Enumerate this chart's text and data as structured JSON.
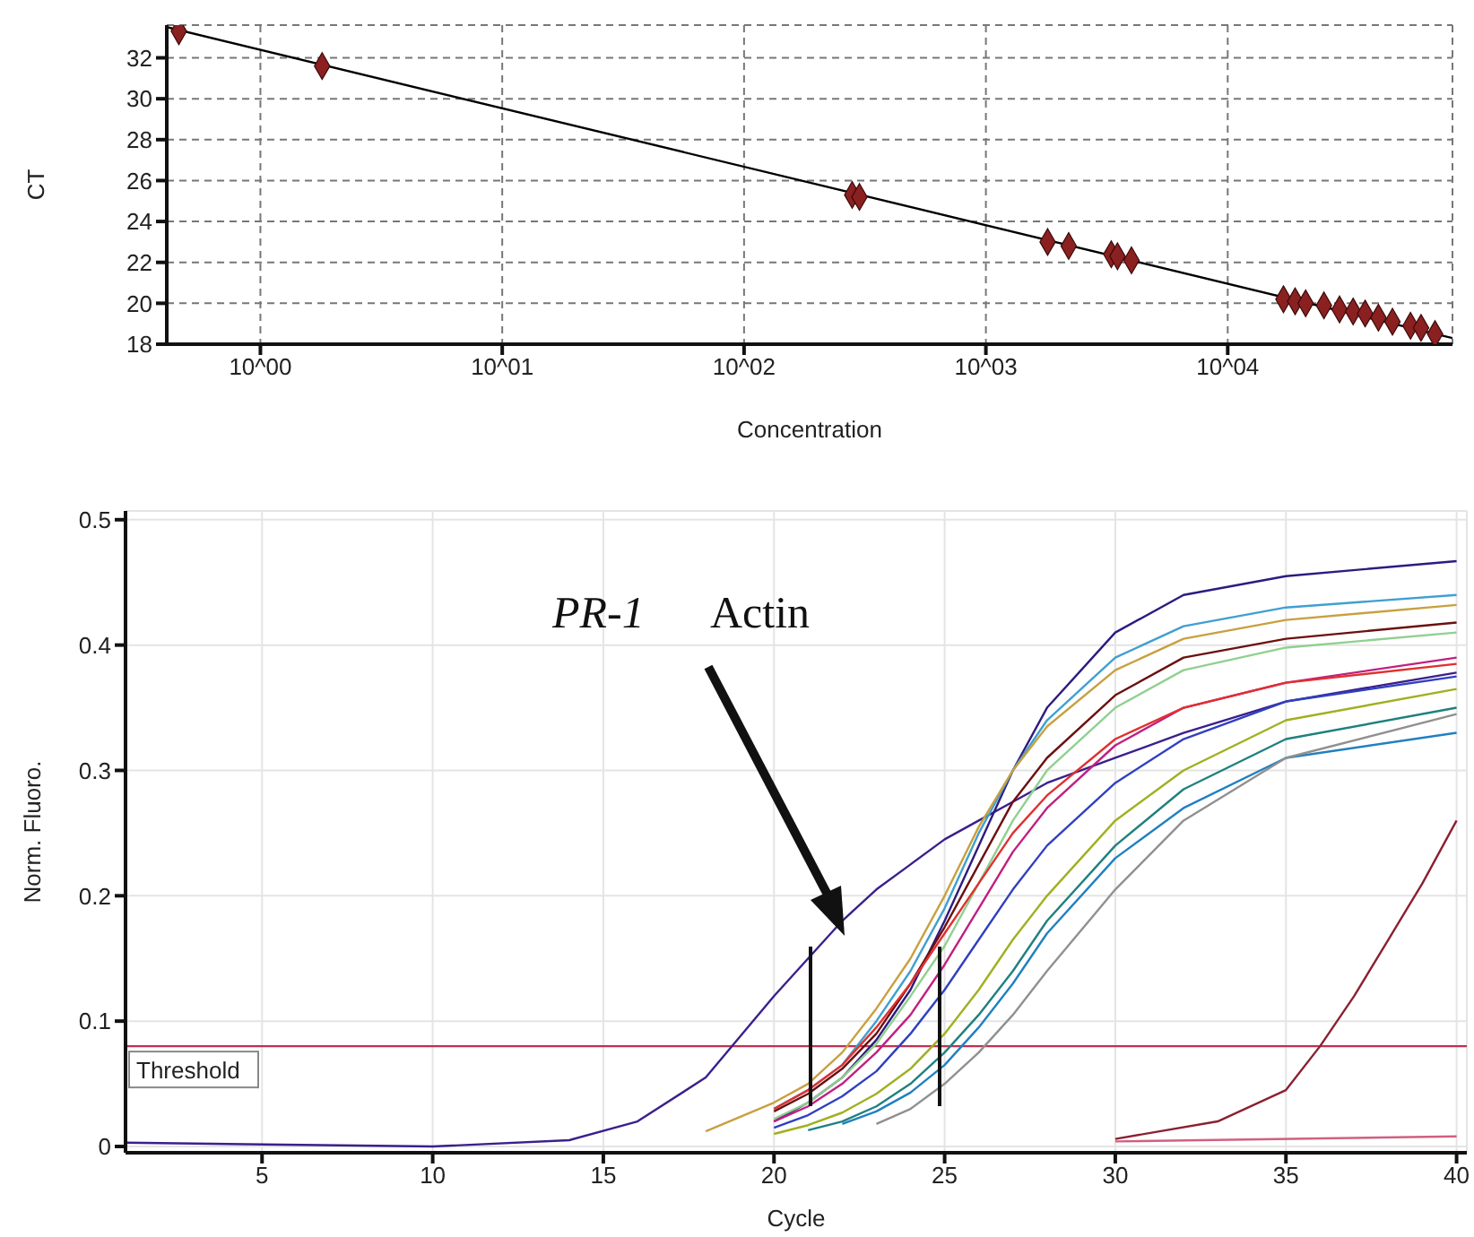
{
  "chart_data": [
    {
      "type": "scatter",
      "xlabel": "Concentration",
      "ylabel": "CT",
      "log": "x",
      "grid": true,
      "marker": "diamond",
      "xlim": [
        0.41,
        85000
      ],
      "xticks": [
        {
          "value": 1,
          "label": "10^00"
        },
        {
          "value": 10,
          "label": "10^01"
        },
        {
          "value": 100,
          "label": "10^02"
        },
        {
          "value": 1000,
          "label": "10^03"
        },
        {
          "value": 10000,
          "label": "10^04"
        }
      ],
      "ylim": [
        18,
        33.6
      ],
      "yticks": [
        18,
        20,
        22,
        24,
        26,
        28,
        30,
        32
      ],
      "series": [
        {
          "color": "#8b2020",
          "x": [
            0.46,
            1.8,
            280,
            300,
            1800,
            2200,
            3300,
            3500,
            4000,
            17000,
            19000,
            21000,
            25000,
            29000,
            33000,
            37000,
            42000,
            48000,
            57000,
            63000,
            72000
          ],
          "values": [
            33.3,
            31.6,
            25.3,
            25.2,
            23.0,
            22.8,
            22.4,
            22.3,
            22.1,
            20.2,
            20.1,
            20.0,
            19.9,
            19.7,
            19.6,
            19.5,
            19.3,
            19.1,
            18.9,
            18.8,
            18.5
          ]
        },
        {
          "type": "line",
          "color": "#000000",
          "marker": "none",
          "x": [
            0.41,
            85000
          ],
          "values": [
            33.5,
            18.3
          ]
        }
      ]
    },
    {
      "type": "line",
      "xlabel": "Cycle",
      "ylabel": "Norm. Fluoro.",
      "grid": true,
      "marker": "none",
      "xlim": [
        1,
        40.3
      ],
      "xticks": [
        5,
        10,
        15,
        20,
        25,
        30,
        35,
        40
      ],
      "ylim": [
        -0.005,
        0.507
      ],
      "yticks": [
        0,
        0.1,
        0.2,
        0.3,
        0.4,
        0.5
      ],
      "ref_lines": [
        {
          "axis": "y",
          "value": 0.08,
          "label": "Threshold",
          "color": "#c03050"
        }
      ],
      "annotations": [
        "PR-1",
        "Actin"
      ],
      "x": [
        1,
        10,
        14,
        16,
        18,
        20,
        21,
        22,
        23,
        24,
        25,
        26,
        27,
        28,
        30,
        32,
        35,
        40
      ],
      "series": [
        {
          "color": "#3b1f8c",
          "values": [
            0.003,
            0,
            0.005,
            0.02,
            0.055,
            0.12,
            0.15,
            0.18,
            0.205,
            0.225,
            0.245,
            0.26,
            0.275,
            0.29,
            0.31,
            0.33,
            0.355,
            0.378
          ]
        },
        {
          "color": "#2e1a80",
          "values": [
            null,
            null,
            null,
            null,
            null,
            0.02,
            0.035,
            0.055,
            0.085,
            0.125,
            0.18,
            0.24,
            0.3,
            0.35,
            0.41,
            0.44,
            0.455,
            0.467
          ]
        },
        {
          "color": "#3fa0d0",
          "values": [
            null,
            null,
            null,
            null,
            null,
            0.03,
            0.045,
            0.065,
            0.1,
            0.14,
            0.19,
            0.25,
            0.3,
            0.34,
            0.39,
            0.415,
            0.43,
            0.44
          ]
        },
        {
          "color": "#c8a040",
          "values": [
            null,
            null,
            null,
            null,
            0.012,
            0.035,
            0.05,
            0.075,
            0.11,
            0.15,
            0.2,
            0.255,
            0.3,
            0.335,
            0.38,
            0.405,
            0.42,
            0.432
          ]
        },
        {
          "color": "#6b1010",
          "values": [
            null,
            null,
            null,
            null,
            null,
            0.028,
            0.042,
            0.062,
            0.09,
            0.13,
            0.175,
            0.225,
            0.275,
            0.31,
            0.36,
            0.39,
            0.405,
            0.418
          ]
        },
        {
          "color": "#90d090",
          "values": [
            null,
            null,
            null,
            null,
            null,
            0.022,
            0.035,
            0.055,
            0.082,
            0.12,
            0.16,
            0.21,
            0.26,
            0.3,
            0.35,
            0.38,
            0.398,
            0.41
          ]
        },
        {
          "color": "#c02080",
          "values": [
            null,
            null,
            null,
            null,
            null,
            0.02,
            0.032,
            0.05,
            0.075,
            0.105,
            0.145,
            0.19,
            0.235,
            0.27,
            0.32,
            0.35,
            0.37,
            0.39
          ]
        },
        {
          "color": "#e03030",
          "values": [
            null,
            null,
            null,
            null,
            null,
            0.03,
            0.045,
            0.065,
            0.095,
            0.13,
            0.17,
            0.21,
            0.25,
            0.28,
            0.325,
            0.35,
            0.37,
            0.385
          ]
        },
        {
          "color": "#3040c0",
          "values": [
            null,
            null,
            null,
            null,
            null,
            0.015,
            0.025,
            0.04,
            0.06,
            0.09,
            0.125,
            0.165,
            0.205,
            0.24,
            0.29,
            0.325,
            0.355,
            0.375
          ]
        },
        {
          "color": "#a0b020",
          "values": [
            null,
            null,
            null,
            null,
            null,
            0.01,
            0.017,
            0.027,
            0.042,
            0.062,
            0.09,
            0.125,
            0.165,
            0.2,
            0.26,
            0.3,
            0.34,
            0.365
          ]
        },
        {
          "color": "#208080",
          "values": [
            null,
            null,
            null,
            null,
            null,
            null,
            0.013,
            0.02,
            0.032,
            0.05,
            0.075,
            0.105,
            0.14,
            0.18,
            0.24,
            0.285,
            0.325,
            0.35
          ]
        },
        {
          "color": "#2080c0",
          "values": [
            null,
            null,
            null,
            null,
            null,
            null,
            null,
            0.018,
            0.028,
            0.043,
            0.065,
            0.095,
            0.13,
            0.17,
            0.23,
            0.27,
            0.31,
            0.33
          ]
        },
        {
          "color": "#909090",
          "values": [
            null,
            null,
            null,
            null,
            null,
            null,
            null,
            null,
            0.018,
            0.03,
            0.05,
            0.075,
            0.105,
            0.14,
            0.205,
            0.26,
            0.31,
            0.345
          ]
        },
        {
          "color": "#8b2030",
          "x": [
            30,
            33,
            35,
            36,
            37,
            38,
            39,
            40
          ],
          "values": [
            0.006,
            0.02,
            0.045,
            0.08,
            0.12,
            0.165,
            0.21,
            0.26
          ]
        },
        {
          "color": "#d06080",
          "x": [
            30,
            40
          ],
          "values": [
            0.004,
            0.008
          ]
        }
      ]
    }
  ]
}
